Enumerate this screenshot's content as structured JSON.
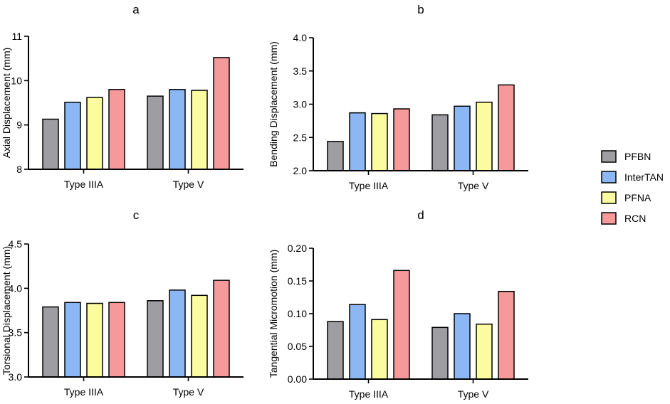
{
  "legend": {
    "series": [
      {
        "name": "PFBN",
        "color": "#9e9ea2"
      },
      {
        "name": "InterTAN",
        "color": "#8bb8f5"
      },
      {
        "name": "PFNA",
        "color": "#fbfba0"
      },
      {
        "name": "RCN",
        "color": "#f5999b"
      }
    ]
  },
  "chart_data": [
    {
      "type": "bar",
      "title": "a",
      "ylabel": "Axial Displacement (mm)",
      "categories": [
        "Type IIIA",
        "Type V"
      ],
      "ylim": [
        8,
        11
      ],
      "yticks": [
        "8",
        "9",
        "10",
        "11"
      ],
      "series": [
        {
          "name": "PFBN",
          "values": [
            9.13,
            9.65
          ]
        },
        {
          "name": "InterTAN",
          "values": [
            9.51,
            9.8
          ]
        },
        {
          "name": "PFNA",
          "values": [
            9.62,
            9.78
          ]
        },
        {
          "name": "RCN",
          "values": [
            9.8,
            10.52
          ]
        }
      ]
    },
    {
      "type": "bar",
      "title": "b",
      "ylabel": "Bending Displacement (mm)",
      "categories": [
        "Type IIIA",
        "Type V"
      ],
      "ylim": [
        2.0,
        4.0
      ],
      "yticks": [
        "2.0",
        "2.5",
        "3.0",
        "3.5",
        "4.0"
      ],
      "series": [
        {
          "name": "PFBN",
          "values": [
            2.44,
            2.84
          ]
        },
        {
          "name": "InterTAN",
          "values": [
            2.87,
            2.97
          ]
        },
        {
          "name": "PFNA",
          "values": [
            2.86,
            3.03
          ]
        },
        {
          "name": "RCN",
          "values": [
            2.93,
            3.29
          ]
        }
      ]
    },
    {
      "type": "bar",
      "title": "c",
      "ylabel": "Torsional Displacement (mm)",
      "categories": [
        "Type IIIA",
        "Type V"
      ],
      "ylim": [
        3.0,
        4.5
      ],
      "yticks": [
        "3.0",
        "3.5",
        "4.0",
        "4.5"
      ],
      "series": [
        {
          "name": "PFBN",
          "values": [
            3.79,
            3.86
          ]
        },
        {
          "name": "InterTAN",
          "values": [
            3.84,
            3.98
          ]
        },
        {
          "name": "PFNA",
          "values": [
            3.83,
            3.92
          ]
        },
        {
          "name": "RCN",
          "values": [
            3.84,
            4.09
          ]
        }
      ]
    },
    {
      "type": "bar",
      "title": "d",
      "ylabel": "Tangential Micromotion (mm)",
      "categories": [
        "Type IIIA",
        "Type V"
      ],
      "ylim": [
        0,
        0.2
      ],
      "yticks": [
        "0.00",
        "0.05",
        "0.10",
        "0.15",
        "0.20"
      ],
      "series": [
        {
          "name": "PFBN",
          "values": [
            0.088,
            0.079
          ]
        },
        {
          "name": "InterTAN",
          "values": [
            0.114,
            0.1
          ]
        },
        {
          "name": "PFNA",
          "values": [
            0.091,
            0.084
          ]
        },
        {
          "name": "RCN",
          "values": [
            0.166,
            0.134
          ]
        }
      ]
    }
  ]
}
